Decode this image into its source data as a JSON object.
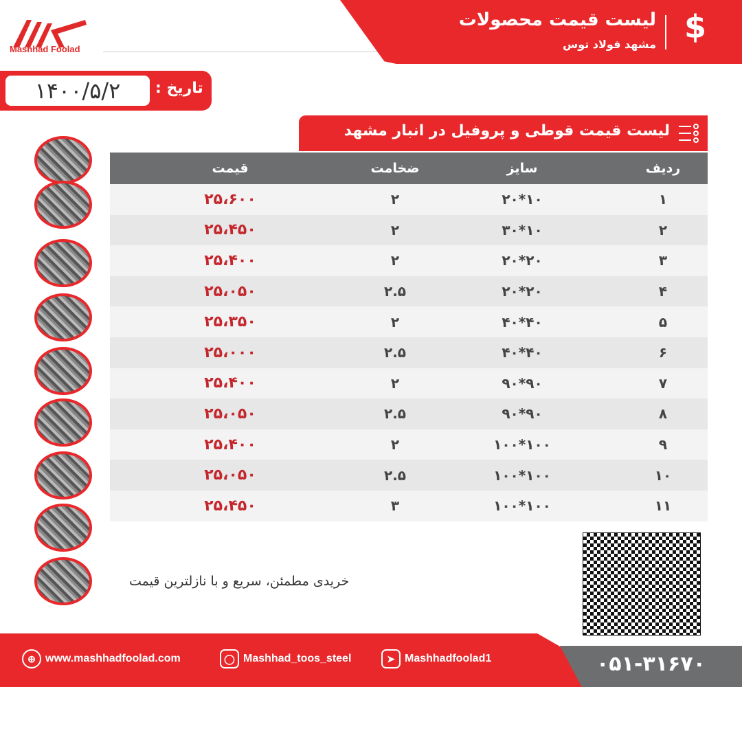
{
  "brand": {
    "logo_text": "Mashhad Foolad"
  },
  "header": {
    "title": "لیست قیمت محصولات",
    "subtitle": "مشهد فولاد توس",
    "icon": "dollar-icon"
  },
  "date": {
    "label": "تاریخ :",
    "value": "۱۴۰۰/۵/۲"
  },
  "section": {
    "title": "لیست قیمت قوطی و پروفیل در انبار مشهد"
  },
  "table": {
    "headers": [
      "قیمت",
      "ضخامت",
      "سایز",
      "ردیف"
    ],
    "rows": [
      {
        "price": "۲۵،۶۰۰",
        "thickness": "۲",
        "size": "۱۰*۲۰",
        "index": "۱"
      },
      {
        "price": "۲۵،۴۵۰",
        "thickness": "۲",
        "size": "۱۰*۳۰",
        "index": "۲"
      },
      {
        "price": "۲۵،۴۰۰",
        "thickness": "۲",
        "size": "۲۰*۲۰",
        "index": "۳"
      },
      {
        "price": "۲۵،۰۵۰",
        "thickness": "۲.۵",
        "size": "۲۰*۲۰",
        "index": "۴"
      },
      {
        "price": "۲۵،۳۵۰",
        "thickness": "۲",
        "size": "۴۰*۴۰",
        "index": "۵"
      },
      {
        "price": "۲۵،۰۰۰",
        "thickness": "۲.۵",
        "size": "۴۰*۴۰",
        "index": "۶"
      },
      {
        "price": "۲۵،۴۰۰",
        "thickness": "۲",
        "size": "۹۰*۹۰",
        "index": "۷"
      },
      {
        "price": "۲۵،۰۵۰",
        "thickness": "۲.۵",
        "size": "۹۰*۹۰",
        "index": "۸"
      },
      {
        "price": "۲۵،۴۰۰",
        "thickness": "۲",
        "size": "۱۰۰*۱۰۰",
        "index": "۹"
      },
      {
        "price": "۲۵،۰۵۰",
        "thickness": "۲.۵",
        "size": "۱۰۰*۱۰۰",
        "index": "۱۰"
      },
      {
        "price": "۲۵،۴۵۰",
        "thickness": "۳",
        "size": "۱۰۰*۱۰۰",
        "index": "۱۱"
      }
    ]
  },
  "slogan": "خریدی مطمئن، سریع و با نازلترین قیمت",
  "footer": {
    "website": "www.mashhadfoolad.com",
    "instagram": "Mashhad_toos_steel",
    "telegram": "Mashhadfoolad1",
    "phone": "۰۵۱-۳۱۶۷۰"
  },
  "colors": {
    "brand_red": "#e8282b",
    "gray": "#6d6e70",
    "price_red": "#c4262c"
  }
}
